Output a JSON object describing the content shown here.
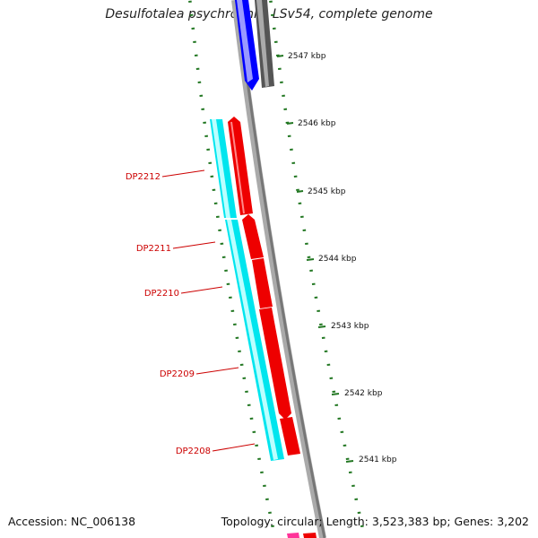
{
  "title": "Desulfotalea psychrophila LSv54, complete genome",
  "footer": {
    "accession": "Accession: NC_006138",
    "stats": "Topology: circular; Length: 3,523,383 bp; Genes: 3,202"
  },
  "colors": {
    "cds_reverse": "#ff0000",
    "cds_reverse_light": "#00e5ee",
    "other_feature": "#0000ff",
    "other_feature_dark": "#666666",
    "backbone": "#888888",
    "tick": "#227722",
    "label": "#cc0000",
    "pink_feature": "#ff3399"
  },
  "scale": {
    "unit": "kbp",
    "labels": [
      "2547 kbp",
      "2546 kbp",
      "2545 kbp",
      "2544 kbp",
      "2543 kbp",
      "2542 kbp",
      "2541 kbp"
    ]
  },
  "genes": [
    {
      "label": "DP2212"
    },
    {
      "label": "DP2211"
    },
    {
      "label": "DP2210"
    },
    {
      "label": "DP2209"
    },
    {
      "label": "DP2208"
    }
  ]
}
